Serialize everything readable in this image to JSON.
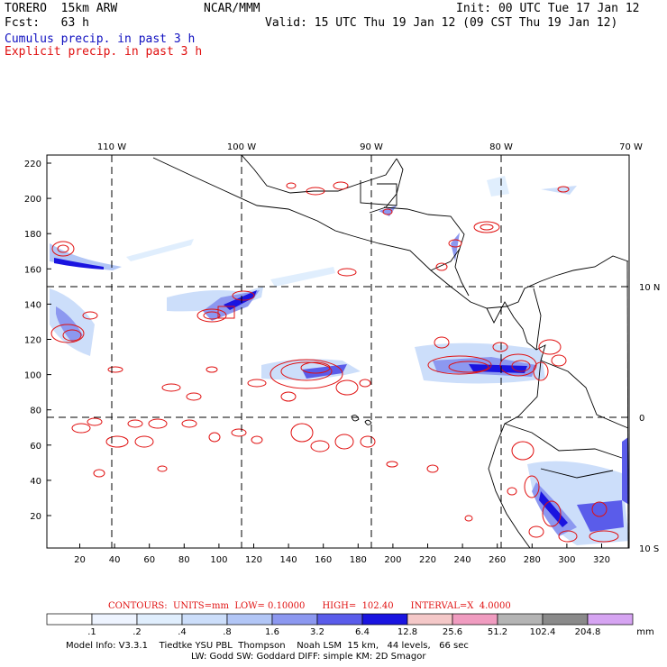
{
  "header": {
    "model": "TORERO  15km ARW",
    "org": "NCAR/MMM",
    "init": "Init: 00 UTC Tue 17 Jan 12",
    "fcst": "Fcst:   63 h",
    "valid": "Valid: 15 UTC Thu 19 Jan 12 (09 CST Thu 19 Jan 12)",
    "field1": "Cumulus precip. in past 3 h",
    "field2": "Explicit precip. in past 3 h"
  },
  "colors": {
    "cumulus_text": "#1010c0",
    "explicit_text": "#e01010",
    "contour": "#e01010"
  },
  "map": {
    "lon_labels": [
      "110 W",
      "100 W",
      "90 W",
      "80 W",
      "70 W"
    ],
    "lat_labels": [
      "10 N",
      "0",
      "10 S"
    ],
    "x_ticks": [
      "20",
      "40",
      "60",
      "80",
      "100",
      "120",
      "140",
      "160",
      "180",
      "200",
      "220",
      "240",
      "260",
      "280",
      "300",
      "320"
    ],
    "y_ticks": [
      "220",
      "200",
      "180",
      "160",
      "140",
      "120",
      "100",
      "80",
      "60",
      "40",
      "20"
    ]
  },
  "contour_info": "CONTOURS:  UNITS=mm  LOW= 0.10000      HIGH=  102.40      INTERVAL=X  4.0000",
  "colorbar": {
    "labels": [
      ".1",
      ".2",
      ".4",
      ".8",
      "1.6",
      "3.2",
      "6.4",
      "12.8",
      "25.6",
      "51.2",
      "102.4",
      "204.8"
    ],
    "unit": "mm",
    "colors": [
      "#ffffff",
      "#eef4ff",
      "#e0eefd",
      "#ccdefa",
      "#b2c6f6",
      "#8c98f0",
      "#5a5cea",
      "#1a14e0",
      "#f4c8c8",
      "#f09cc0",
      "#b4b4b4",
      "#8a8a8a",
      "#d6a4f2"
    ]
  },
  "model_info": {
    "line1": "Model Info: V3.3.1    Tiedtke YSU PBL  Thompson    Noah LSM  15 km,   44 levels,   66 sec",
    "line2": "LW: Godd SW: Goddard DIFF: simple KM: 2D Smagor"
  }
}
